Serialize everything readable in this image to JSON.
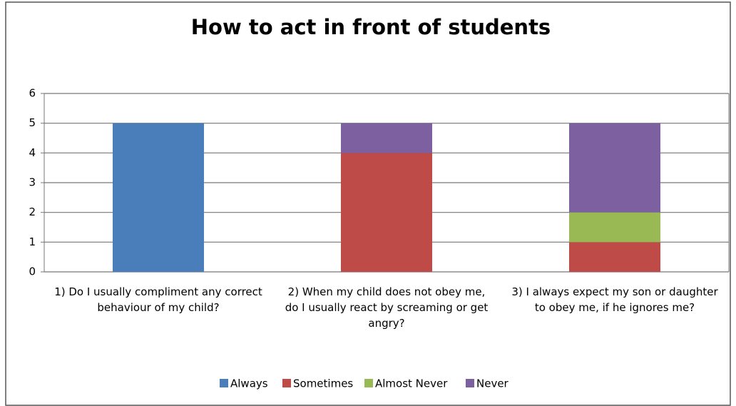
{
  "chart_data": {
    "type": "stacked_bar",
    "title": "How to act in front of students",
    "categories": [
      "1) Do I usually compliment any correct behaviour of my child?",
      "2) When my child does not obey me, do I usually react by screaming or get angry?",
      "3) I always expect my son or daughter to obey me, if he ignores me?"
    ],
    "series": [
      {
        "name": "Always",
        "color": "#4a7ebb",
        "values": [
          5,
          0,
          0
        ]
      },
      {
        "name": "Sometimes",
        "color": "#be4b48",
        "values": [
          0,
          4,
          1
        ]
      },
      {
        "name": "Almost Never",
        "color": "#98b954",
        "values": [
          0,
          0,
          1
        ]
      },
      {
        "name": "Never",
        "color": "#7d60a0",
        "values": [
          0,
          1,
          3
        ]
      }
    ],
    "ylim": [
      0,
      6
    ],
    "yticks": [
      0,
      1,
      2,
      3,
      4,
      5,
      6
    ],
    "grid": true,
    "legend": "bottom"
  }
}
